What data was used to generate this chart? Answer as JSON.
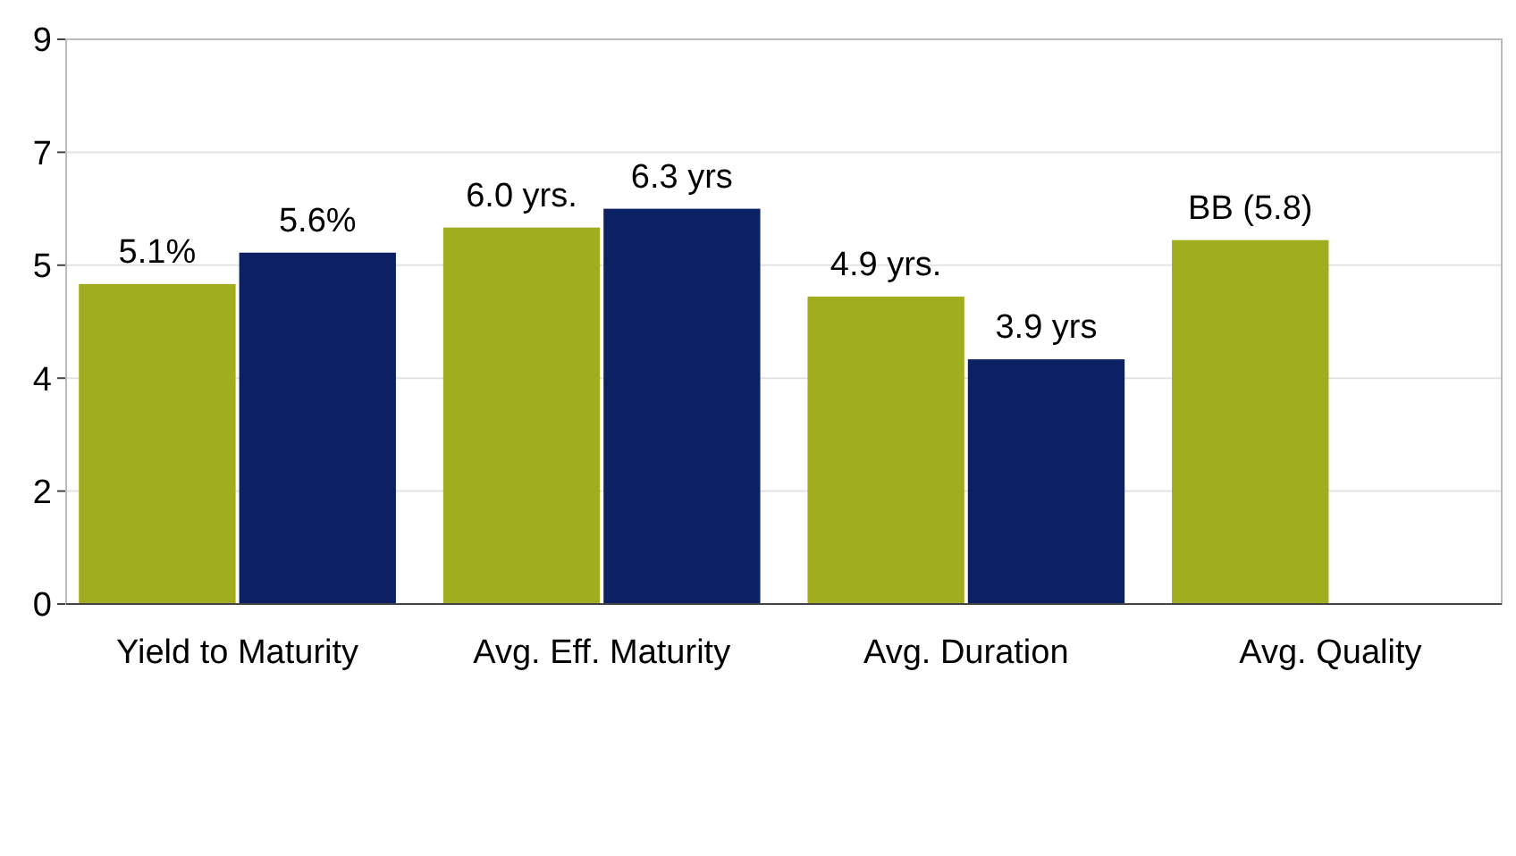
{
  "chart_data": {
    "type": "bar",
    "categories": [
      "Yield to Maturity",
      "Avg. Eff. Maturity",
      "Avg. Duration",
      "Avg. Quality"
    ],
    "series": [
      {
        "color": "#a0ad1e",
        "values": [
          5.1,
          6.0,
          4.9,
          5.8
        ],
        "value_labels": [
          "5.1%",
          "6.0 yrs.",
          "4.9 yrs.",
          "BB (5.8)"
        ]
      },
      {
        "color": "#0c2164",
        "values": [
          5.6,
          6.3,
          3.9,
          null
        ],
        "value_labels": [
          "5.6%",
          "6.3 yrs",
          "3.9 yrs",
          null
        ]
      }
    ],
    "ylim": [
      0,
      9
    ],
    "yticks": [
      0,
      {
        "value": 1.8,
        "label": "2"
      },
      {
        "value": 3.6,
        "label": "4"
      },
      {
        "value": 5.4,
        "label": "5"
      },
      {
        "value": 7.2,
        "label": "7"
      },
      9
    ],
    "grid": "y"
  }
}
